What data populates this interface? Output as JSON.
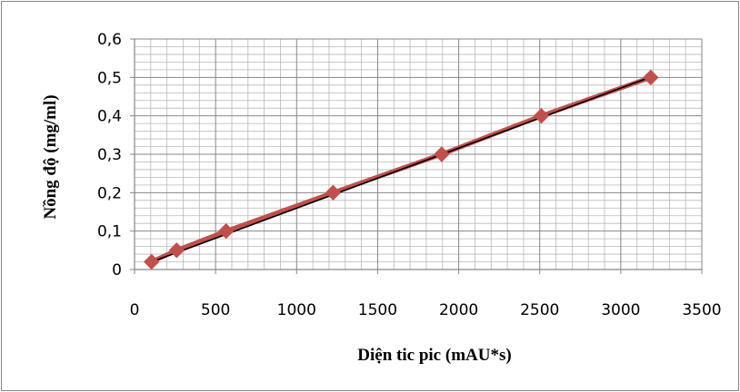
{
  "chart_data": {
    "type": "scatter",
    "xlabel": "Diện tic pic (mAU*s)",
    "ylabel": "Nồng độ (mg/ml)",
    "xlim": [
      0,
      3500
    ],
    "ylim": [
      0,
      0.6
    ],
    "x_ticks": [
      "0",
      "500",
      "1000",
      "1500",
      "2000",
      "2500",
      "3000",
      "3500"
    ],
    "y_ticks": [
      "0",
      "0,1",
      "0,2",
      "0,3",
      "0,4",
      "0,5",
      "0,6"
    ],
    "grid": true,
    "legend": "none",
    "series": [
      {
        "x": [
          105,
          260,
          565,
          1225,
          1895,
          2510,
          3185
        ],
        "y": [
          0.02,
          0.05,
          0.1,
          0.2,
          0.3,
          0.4,
          0.5
        ],
        "color": "#C0504D",
        "marker": "diamond",
        "line": true
      }
    ],
    "trendline": {
      "type": "linear",
      "color": "#000000",
      "x": [
        100,
        3190
      ],
      "y": [
        0.019,
        0.502
      ]
    }
  }
}
